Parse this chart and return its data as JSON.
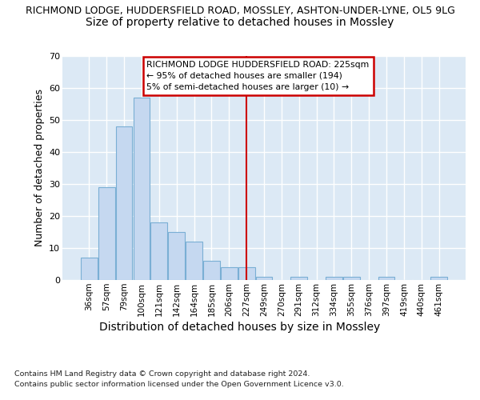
{
  "title1": "RICHMOND LODGE, HUDDERSFIELD ROAD, MOSSLEY, ASHTON-UNDER-LYNE, OL5 9LG",
  "title2": "Size of property relative to detached houses in Mossley",
  "xlabel": "Distribution of detached houses by size in Mossley",
  "ylabel": "Number of detached properties",
  "footnote1": "Contains HM Land Registry data © Crown copyright and database right 2024.",
  "footnote2": "Contains public sector information licensed under the Open Government Licence v3.0.",
  "categories": [
    "36sqm",
    "57sqm",
    "79sqm",
    "100sqm",
    "121sqm",
    "142sqm",
    "164sqm",
    "185sqm",
    "206sqm",
    "227sqm",
    "249sqm",
    "270sqm",
    "291sqm",
    "312sqm",
    "334sqm",
    "355sqm",
    "376sqm",
    "397sqm",
    "419sqm",
    "440sqm",
    "461sqm"
  ],
  "values": [
    7,
    29,
    48,
    57,
    18,
    15,
    12,
    6,
    4,
    4,
    1,
    0,
    1,
    0,
    1,
    1,
    0,
    1,
    0,
    0,
    1
  ],
  "bar_color": "#c5d8f0",
  "bar_edge_color": "#7aafd4",
  "red_line_index": 9,
  "annotation_text": "RICHMOND LODGE HUDDERSFIELD ROAD: 225sqm\n← 95% of detached houses are smaller (194)\n5% of semi-detached houses are larger (10) →",
  "ylim": [
    0,
    70
  ],
  "yticks": [
    0,
    10,
    20,
    30,
    40,
    50,
    60,
    70
  ],
  "fig_bg_color": "#ffffff",
  "plot_bg_color": "#dce9f5",
  "grid_color": "#ffffff",
  "annotation_box_color": "#ffffff",
  "annotation_border_color": "#cc0000",
  "red_line_color": "#cc0000",
  "title1_fontsize": 9,
  "title2_fontsize": 10,
  "xlabel_fontsize": 10,
  "ylabel_fontsize": 9
}
